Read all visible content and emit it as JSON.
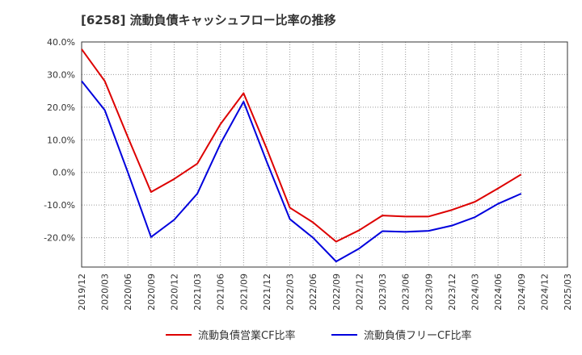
{
  "chart_data": {
    "type": "line",
    "title": "[6258]  流動負債キャッシュフロー比率の推移",
    "xlabel": "",
    "ylabel": "",
    "x": [
      "2019/12",
      "2020/03",
      "2020/06",
      "2020/09",
      "2020/12",
      "2021/03",
      "2021/06",
      "2021/09",
      "2021/12",
      "2022/03",
      "2022/06",
      "2022/09",
      "2022/12",
      "2023/03",
      "2023/06",
      "2023/09",
      "2023/12",
      "2024/03",
      "2024/06",
      "2024/09",
      "2024/12",
      "2025/03"
    ],
    "y_ticks": [
      "40.0%",
      "30.0%",
      "20.0%",
      "10.0%",
      "0.0%",
      "-10.0%",
      "-20.0%"
    ],
    "ylim": [
      -29,
      40
    ],
    "grid": true,
    "legend_position": "bottom",
    "series": [
      {
        "name": "流動負債営業CF比率",
        "color": "#dd0000",
        "values": [
          37.8,
          28.0,
          10.8,
          -6.0,
          -2.0,
          2.7,
          14.8,
          24.3,
          7.3,
          -10.8,
          -15.3,
          -21.2,
          -17.7,
          -13.2,
          -13.5,
          -13.5,
          -11.5,
          -9.0,
          -4.9,
          -0.6,
          null,
          null
        ]
      },
      {
        "name": "流動負債フリーCF比率",
        "color": "#0000dd",
        "values": [
          28.0,
          19.1,
          0.0,
          -19.8,
          -14.5,
          -6.5,
          8.8,
          21.7,
          3.3,
          -14.3,
          -20.0,
          -27.3,
          -23.3,
          -18.0,
          -18.2,
          -17.9,
          -16.3,
          -13.7,
          -9.6,
          -6.5,
          null,
          null
        ]
      }
    ]
  }
}
